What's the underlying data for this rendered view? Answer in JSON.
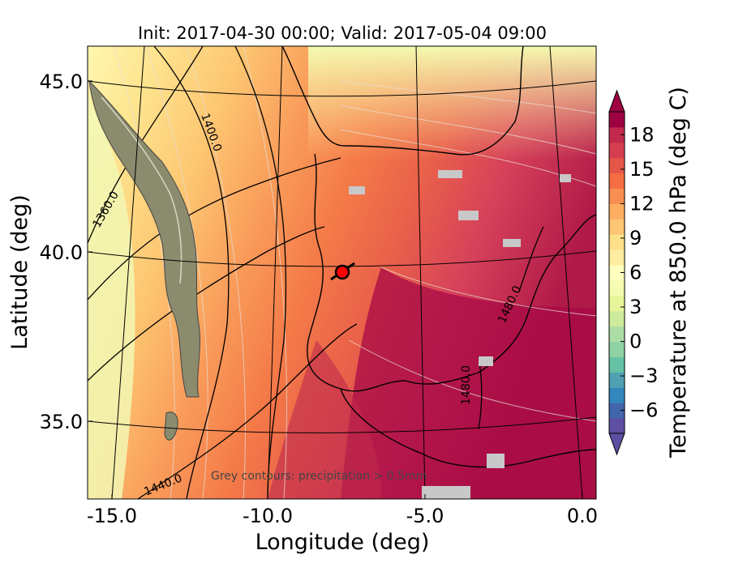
{
  "title": "Init: 2017-04-30 00:00; Valid: 2017-05-04 09:00",
  "x_axis": {
    "label": "Longitude (deg)",
    "ticks": [
      {
        "value": -15.0,
        "label": "-15.0"
      },
      {
        "value": -10.0,
        "label": "-10.0"
      },
      {
        "value": -5.0,
        "label": "-5.0"
      },
      {
        "value": 0.0,
        "label": "0.0"
      }
    ]
  },
  "y_axis": {
    "label": "Latitude (deg)",
    "ticks": [
      {
        "value": 45.0,
        "label": "45.0"
      },
      {
        "value": 40.0,
        "label": "40.0"
      },
      {
        "value": 35.0,
        "label": "35.0"
      }
    ]
  },
  "colorbar": {
    "label": "Temperature at 850.0 hPa (deg C)",
    "ticks": [
      "18",
      "15",
      "12",
      "9",
      "6",
      "3",
      "0",
      "−3",
      "−6"
    ],
    "tick_values": [
      18,
      15,
      12,
      9,
      6,
      3,
      0,
      -3,
      -6
    ],
    "min": -8,
    "max": 20,
    "extend": "both",
    "colors": [
      "#5e4fa2",
      "#4266ac",
      "#3288bd",
      "#4fa1b1",
      "#66c2a5",
      "#8fd3a4",
      "#abdda4",
      "#cdeb9d",
      "#e6f598",
      "#f5fbb1",
      "#ffffbf",
      "#feeda0",
      "#fee08b",
      "#fdc776",
      "#fdae61",
      "#f88e52",
      "#f46d43",
      "#e55649",
      "#d53e4f",
      "#c22a4d",
      "#9e0142"
    ]
  },
  "contour_labels": [
    "1360.0",
    "1400.0",
    "1440.0",
    "1480.0",
    "1480.0"
  ],
  "annotation": "Grey contours: precipitation > 0.5mm",
  "marker": {
    "lon": -7.6,
    "lat": 39.3,
    "color": "#ff0000"
  }
}
